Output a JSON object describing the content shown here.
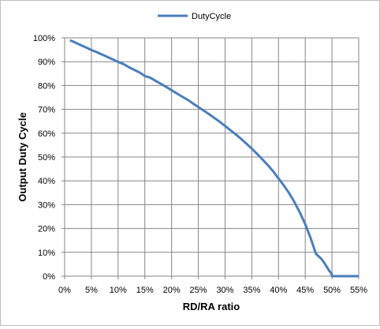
{
  "chart_data": {
    "type": "line",
    "xlabel": "RD/RA ratio",
    "ylabel": "Output Duty Cycle",
    "x_ticks": [
      "0%",
      "5%",
      "10%",
      "15%",
      "20%",
      "25%",
      "30%",
      "35%",
      "40%",
      "45%",
      "50%",
      "55%"
    ],
    "y_ticks": [
      "0%",
      "10%",
      "20%",
      "30%",
      "40%",
      "50%",
      "60%",
      "70%",
      "80%",
      "90%",
      "100%"
    ],
    "xlim": [
      0,
      0.55
    ],
    "ylim": [
      0,
      1.0
    ],
    "grid": true,
    "legend_position": "top-center",
    "series": [
      {
        "name": "DutyCycle",
        "color": "#4a7ebb",
        "x": [
          0.01,
          0.02,
          0.03,
          0.04,
          0.05,
          0.06,
          0.07,
          0.08,
          0.09,
          0.1,
          0.11,
          0.12,
          0.13,
          0.14,
          0.15,
          0.16,
          0.17,
          0.18,
          0.19,
          0.2,
          0.21,
          0.22,
          0.23,
          0.24,
          0.25,
          0.26,
          0.27,
          0.28,
          0.29,
          0.3,
          0.31,
          0.32,
          0.33,
          0.34,
          0.35,
          0.36,
          0.37,
          0.38,
          0.39,
          0.4,
          0.41,
          0.42,
          0.43,
          0.44,
          0.45,
          0.46,
          0.47,
          0.48,
          0.485,
          0.49,
          0.495,
          0.499,
          0.5,
          0.51,
          0.55
        ],
        "y": [
          0.99,
          0.98,
          0.97,
          0.96,
          0.949,
          0.94,
          0.93,
          0.92,
          0.91,
          0.899,
          0.89,
          0.877,
          0.866,
          0.855,
          0.84,
          0.833,
          0.82,
          0.807,
          0.794,
          0.78,
          0.767,
          0.753,
          0.74,
          0.725,
          0.71,
          0.695,
          0.68,
          0.664,
          0.648,
          0.63,
          0.613,
          0.595,
          0.576,
          0.556,
          0.535,
          0.513,
          0.49,
          0.466,
          0.44,
          0.41,
          0.38,
          0.348,
          0.31,
          0.267,
          0.218,
          0.16,
          0.094,
          0.073,
          0.058,
          0.04,
          0.022,
          0.012,
          0.0,
          0.0,
          0.0
        ]
      }
    ]
  }
}
